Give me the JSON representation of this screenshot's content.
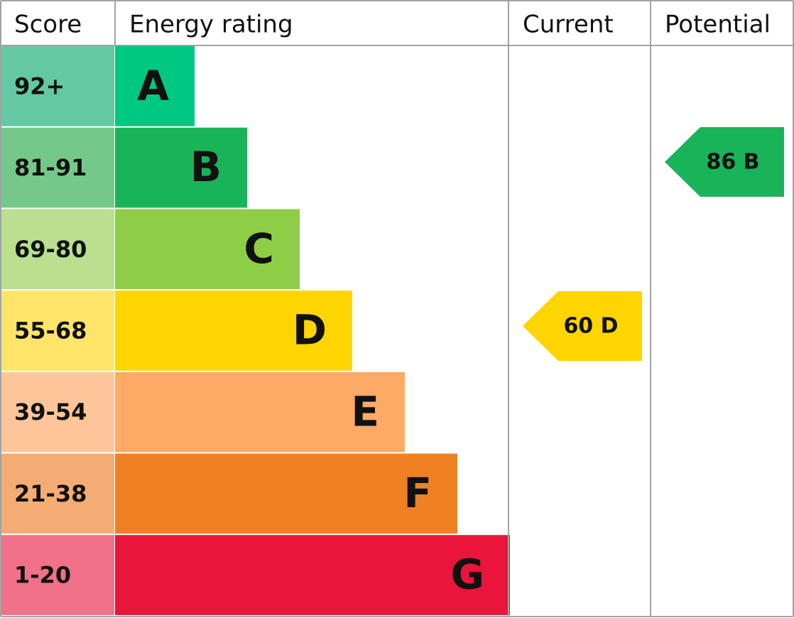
{
  "header": {
    "score": "Score",
    "energy_rating": "Energy rating",
    "current": "Current",
    "potential": "Potential"
  },
  "bands": [
    {
      "score": "92+",
      "letter": "A",
      "color": "#00c781",
      "score_color": "#63c8a3"
    },
    {
      "score": "81-91",
      "letter": "B",
      "color": "#19b459",
      "score_color": "#74c98a"
    },
    {
      "score": "69-80",
      "letter": "C",
      "color": "#8dce46",
      "score_color": "#b9df8f"
    },
    {
      "score": "55-68",
      "letter": "D",
      "color": "#ffd500",
      "score_color": "#ffe46a"
    },
    {
      "score": "39-54",
      "letter": "E",
      "color": "#fcaa65",
      "score_color": "#fdc69a"
    },
    {
      "score": "21-38",
      "letter": "F",
      "color": "#ef8023",
      "score_color": "#f3ad73"
    },
    {
      "score": "1-20",
      "letter": "G",
      "color": "#e9153b",
      "score_color": "#f17189"
    }
  ],
  "current": {
    "label": "60 D",
    "color": "#ffd500"
  },
  "potential": {
    "label": "86 B",
    "color": "#19b459"
  }
}
